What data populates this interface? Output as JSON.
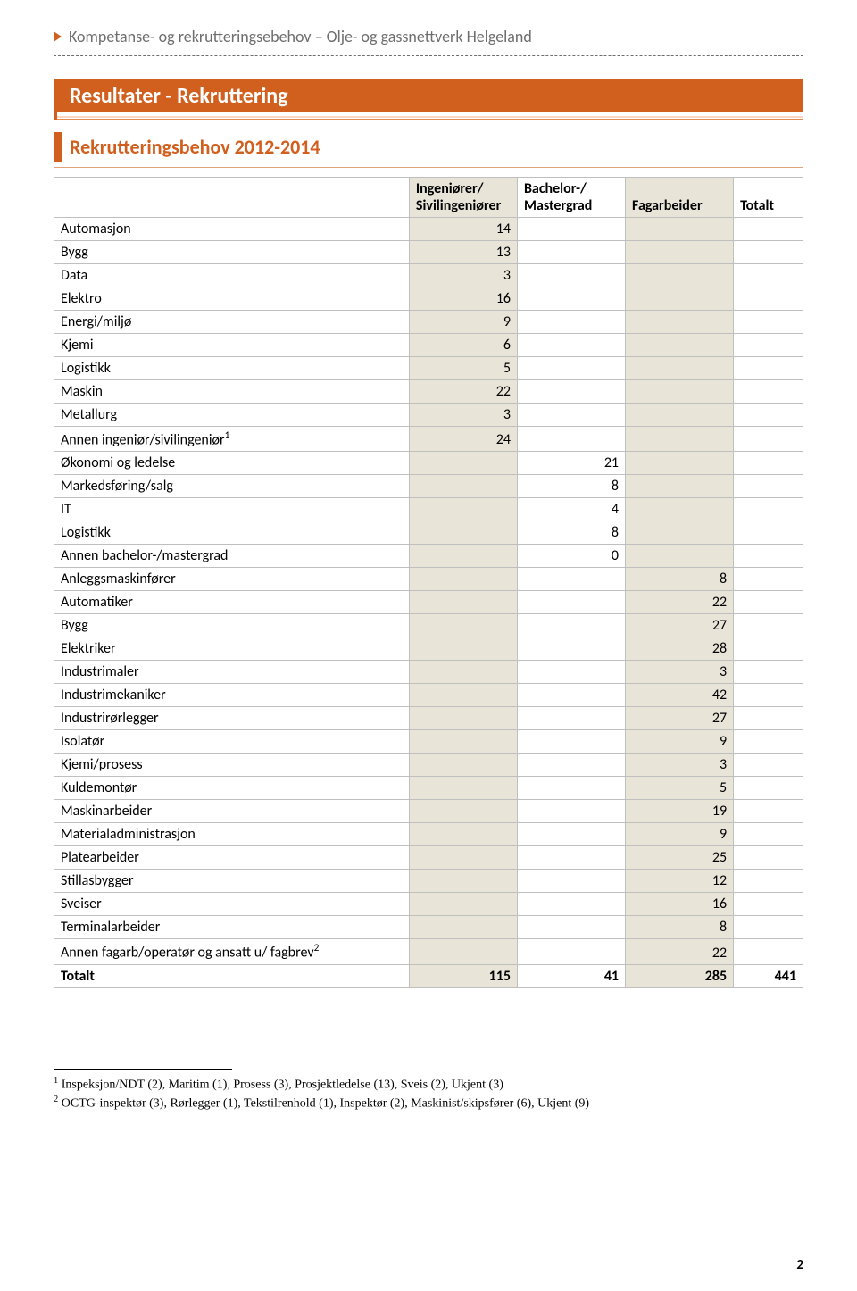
{
  "header_title": "Kompetanse- og rekrutteringsebehov – Olje- og gassnettverk Helgeland",
  "h1": "Resultater - Rekruttering",
  "h2": "Rekrutteringsbehov 2012-2014",
  "columns": {
    "c0": "",
    "c1": "Ingeniører/ Sivilingeniører",
    "c2": "Bachelor-/ Mastergrad",
    "c3": "Fagarbeider",
    "c4": "Totalt"
  },
  "rows": [
    {
      "label": "Automasjon",
      "c1": "14"
    },
    {
      "label": "Bygg",
      "c1": "13"
    },
    {
      "label": "Data",
      "c1": "3"
    },
    {
      "label": "Elektro",
      "c1": "16"
    },
    {
      "label": "Energi/miljø",
      "c1": "9"
    },
    {
      "label": "Kjemi",
      "c1": "6"
    },
    {
      "label": "Logistikk",
      "c1": "5"
    },
    {
      "label": "Maskin",
      "c1": "22"
    },
    {
      "label": "Metallurg",
      "c1": "3"
    },
    {
      "label": "Annen ingeniør/sivilingeniør",
      "sup": "1",
      "c1": "24"
    },
    {
      "label": "Økonomi og ledelse",
      "c2": "21"
    },
    {
      "label": "Markedsføring/salg",
      "c2": "8"
    },
    {
      "label": "IT",
      "c2": "4"
    },
    {
      "label": "Logistikk",
      "c2": "8"
    },
    {
      "label": "Annen bachelor-/mastergrad",
      "c2": "0"
    },
    {
      "label": "Anleggsmaskinfører",
      "c3": "8"
    },
    {
      "label": "Automatiker",
      "c3": "22"
    },
    {
      "label": "Bygg",
      "c3": "27"
    },
    {
      "label": "Elektriker",
      "c3": "28"
    },
    {
      "label": "Industrimaler",
      "c3": "3"
    },
    {
      "label": "Industrimekaniker",
      "c3": "42"
    },
    {
      "label": "Industrirørlegger",
      "c3": "27"
    },
    {
      "label": "Isolatør",
      "c3": "9"
    },
    {
      "label": "Kjemi/prosess",
      "c3": "3"
    },
    {
      "label": "Kuldemontør",
      "c3": "5"
    },
    {
      "label": "Maskinarbeider",
      "c3": "19"
    },
    {
      "label": "Materialadministrasjon",
      "c3": "9"
    },
    {
      "label": "Platearbeider",
      "c3": "25"
    },
    {
      "label": "Stillasbygger",
      "c3": "12"
    },
    {
      "label": "Sveiser",
      "c3": "16"
    },
    {
      "label": "Terminalarbeider",
      "c3": "8"
    },
    {
      "label": "Annen fagarb/operatør og ansatt u/ fagbrev",
      "sup": "2",
      "c3": "22"
    }
  ],
  "total": {
    "label": "Totalt",
    "c1": "115",
    "c2": "41",
    "c3": "285",
    "c4": "441"
  },
  "footnotes": {
    "f1_num": "1",
    "f1_text": " Inspeksjon/NDT (2), Maritim (1), Prosess (3), Prosjektledelse (13), Sveis (2), Ukjent (3)",
    "f2_num": "2",
    "f2_text": " OCTG-inspektør (3), Rørlegger (1), Tekstilrenhold (1), Inspektør (2), Maskinist/skipsfører (6), Ukjent (9)"
  },
  "page_number": "2"
}
